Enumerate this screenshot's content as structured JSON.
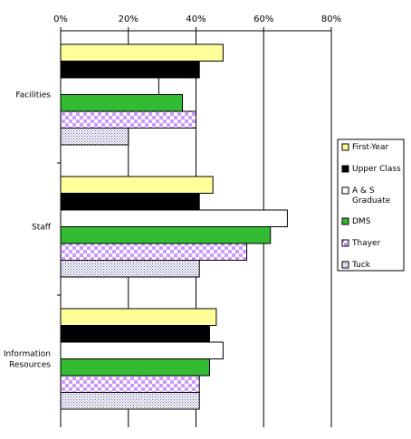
{
  "chart_data": {
    "type": "bar",
    "orientation": "horizontal",
    "categories": [
      "Facilities",
      "Staff",
      "Information Resources"
    ],
    "series": [
      {
        "name": "First-Year",
        "color": "#ffff99",
        "pattern": "solid",
        "values": [
          48,
          45,
          46
        ]
      },
      {
        "name": "Upper Class",
        "color": "#000000",
        "pattern": "solid",
        "values": [
          41,
          41,
          44
        ]
      },
      {
        "name": "A & S Graduate",
        "color": "#ffffff",
        "pattern": "solid",
        "values": [
          29,
          67,
          48
        ]
      },
      {
        "name": "DMS",
        "color": "#33bb33",
        "pattern": "solid",
        "values": [
          36,
          62,
          44
        ]
      },
      {
        "name": "Thayer",
        "color": "#cc99ff",
        "pattern": "checker",
        "values": [
          40,
          55,
          41
        ]
      },
      {
        "name": "Tuck",
        "color": "#9999cc",
        "pattern": "dots",
        "values": [
          20,
          41,
          41
        ]
      }
    ],
    "x_ticks": [
      "0%",
      "20%",
      "40%",
      "60%",
      "80%"
    ],
    "xlim": [
      0,
      80
    ],
    "grid": true,
    "legend_position": "right"
  }
}
